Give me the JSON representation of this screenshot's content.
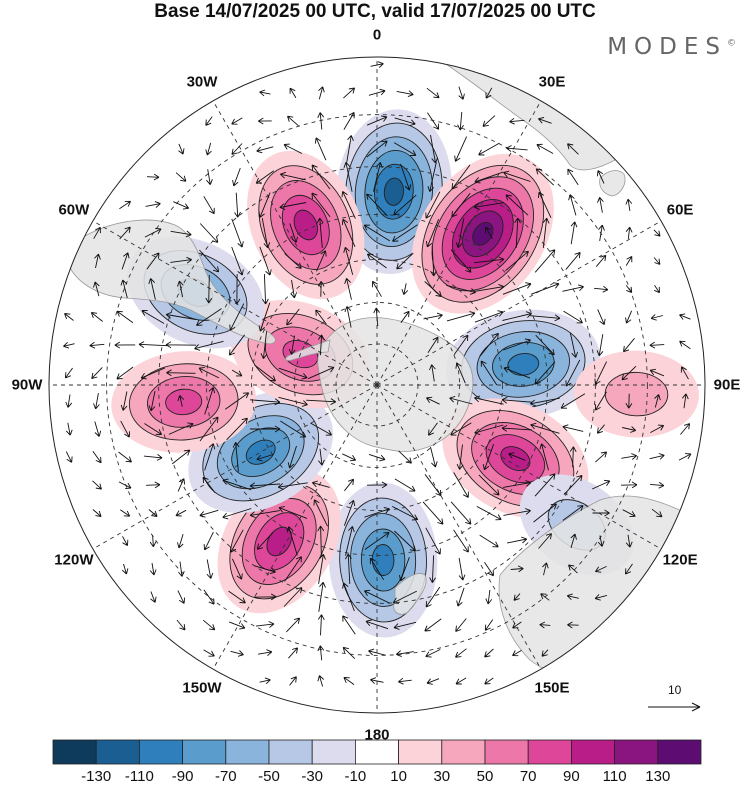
{
  "header": {
    "title": "Base 14/07/2025 00 UTC, valid 17/07/2025 00 UTC",
    "brand": "MODES",
    "brand_mark": "©"
  },
  "map": {
    "projection": "south-polar-stereographic",
    "longitude_labels": [
      {
        "lon": 0,
        "text": "0"
      },
      {
        "lon": 30,
        "text": "30E"
      },
      {
        "lon": 60,
        "text": "60E"
      },
      {
        "lon": 90,
        "text": "90E"
      },
      {
        "lon": 120,
        "text": "120E"
      },
      {
        "lon": 150,
        "text": "150E"
      },
      {
        "lon": 180,
        "text": "180"
      },
      {
        "lon": -150,
        "text": "150W"
      },
      {
        "lon": -120,
        "text": "120W"
      },
      {
        "lon": -90,
        "text": "90W"
      },
      {
        "lon": -60,
        "text": "60W"
      },
      {
        "lon": -30,
        "text": "30W"
      }
    ],
    "anomaly_centers": [
      {
        "sign": "negative",
        "lon": 5,
        "lat": -45,
        "peak": -110
      },
      {
        "sign": "positive",
        "lon": 35,
        "lat": -47,
        "peak": 130
      },
      {
        "sign": "negative",
        "lon": 82,
        "lat": -55,
        "peak": -90
      },
      {
        "sign": "positive",
        "lon": 118,
        "lat": -53,
        "peak": 90
      },
      {
        "sign": "negative",
        "lon": 178,
        "lat": -49,
        "peak": -90
      },
      {
        "sign": "positive",
        "lon": -148,
        "lat": -47,
        "peak": 90
      },
      {
        "sign": "negative",
        "lon": -120,
        "lat": -58,
        "peak": -90
      },
      {
        "sign": "positive",
        "lon": -95,
        "lat": -45,
        "peak": 70
      },
      {
        "sign": "positive",
        "lon": -68,
        "lat": -70,
        "peak": 70
      },
      {
        "sign": "negative",
        "lon": -63,
        "lat": -43,
        "peak": -70
      },
      {
        "sign": "positive",
        "lon": -24,
        "lat": -49,
        "peak": 90
      },
      {
        "sign": "negative",
        "lon": 125,
        "lat": -35,
        "peak": -30
      },
      {
        "sign": "positive",
        "lon": 92,
        "lat": -32,
        "peak": 30
      }
    ],
    "wind_reference": {
      "value": "10",
      "label": "10"
    }
  },
  "colorbar": {
    "colors": [
      "#0e3b5c",
      "#1b5e91",
      "#2f7fbc",
      "#5a9dcc",
      "#8ab4dc",
      "#b7c7e6",
      "#dcdcee",
      "#ffffff",
      "#fbd3d8",
      "#f6a7bd",
      "#ee77aa",
      "#de4799",
      "#b81d88",
      "#8b1580",
      "#5d0d72"
    ],
    "ticks": [
      "-130",
      "-110",
      "-90",
      "-70",
      "-50",
      "-30",
      "-10",
      "10",
      "30",
      "50",
      "70",
      "90",
      "110",
      "130"
    ],
    "levels": [
      -130,
      -110,
      -90,
      -70,
      -50,
      -30,
      -10,
      10,
      30,
      50,
      70,
      90,
      110,
      130
    ]
  }
}
